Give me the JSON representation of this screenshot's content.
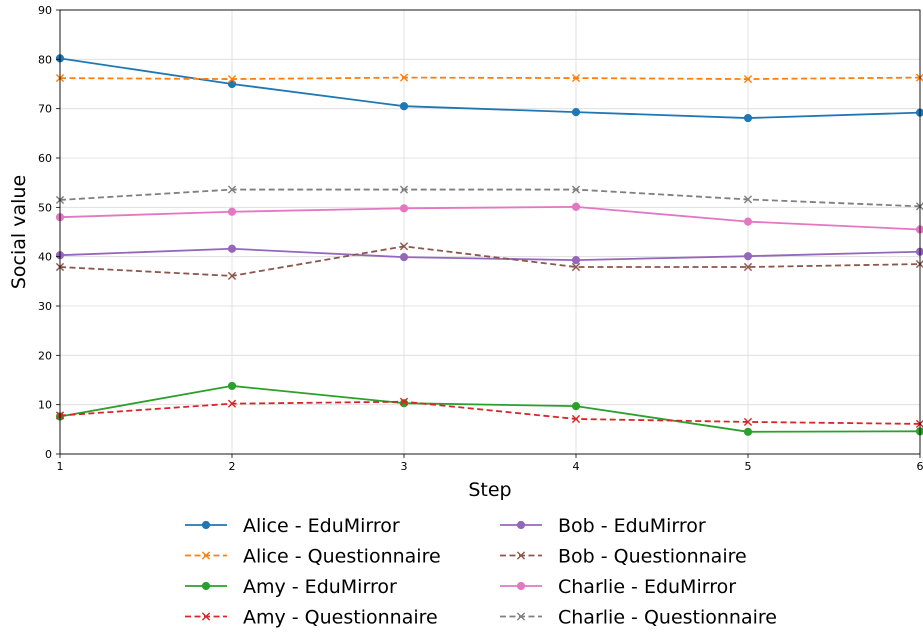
{
  "chart_data": {
    "type": "line",
    "title": "",
    "xlabel": "Step",
    "ylabel": "Social value",
    "x": [
      1,
      2,
      3,
      4,
      5,
      6
    ],
    "xlim": [
      1,
      6
    ],
    "ylim": [
      0,
      90
    ],
    "xticks": [
      1,
      2,
      3,
      4,
      5,
      6
    ],
    "yticks": [
      0,
      10,
      20,
      30,
      40,
      50,
      60,
      70,
      80,
      90
    ],
    "grid": true,
    "legend_placement": "bottom-center",
    "series": [
      {
        "name": "Alice - EduMirror",
        "color": "#1f77b4",
        "style": "solid",
        "marker": "circle",
        "values": [
          80.2,
          75.0,
          70.5,
          69.3,
          68.1,
          69.2
        ]
      },
      {
        "name": "Alice - Questionnaire",
        "color": "#ff7f0e",
        "style": "dashed",
        "marker": "x",
        "values": [
          76.2,
          76.0,
          76.3,
          76.2,
          76.0,
          76.3
        ]
      },
      {
        "name": "Amy - EduMirror",
        "color": "#2ca02c",
        "style": "solid",
        "marker": "circle",
        "values": [
          7.6,
          13.8,
          10.3,
          9.7,
          4.5,
          4.6
        ]
      },
      {
        "name": "Amy - Questionnaire",
        "color": "#d62728",
        "style": "dashed",
        "marker": "x",
        "values": [
          7.8,
          10.2,
          10.6,
          7.1,
          6.5,
          6.1
        ]
      },
      {
        "name": "Bob - EduMirror",
        "color": "#9467bd",
        "style": "solid",
        "marker": "circle",
        "values": [
          40.3,
          41.6,
          39.9,
          39.3,
          40.1,
          41.0
        ]
      },
      {
        "name": "Bob - Questionnaire",
        "color": "#8c564b",
        "style": "dashed",
        "marker": "x",
        "values": [
          37.9,
          36.1,
          42.1,
          37.9,
          37.9,
          38.5
        ]
      },
      {
        "name": "Charlie - EduMirror",
        "color": "#e377c2",
        "style": "solid",
        "marker": "circle",
        "values": [
          48.0,
          49.1,
          49.8,
          50.1,
          47.1,
          45.5
        ]
      },
      {
        "name": "Charlie - Questionnaire",
        "color": "#7f7f7f",
        "style": "dashed",
        "marker": "x",
        "values": [
          51.5,
          53.6,
          53.6,
          53.6,
          51.6,
          50.2
        ]
      }
    ]
  }
}
